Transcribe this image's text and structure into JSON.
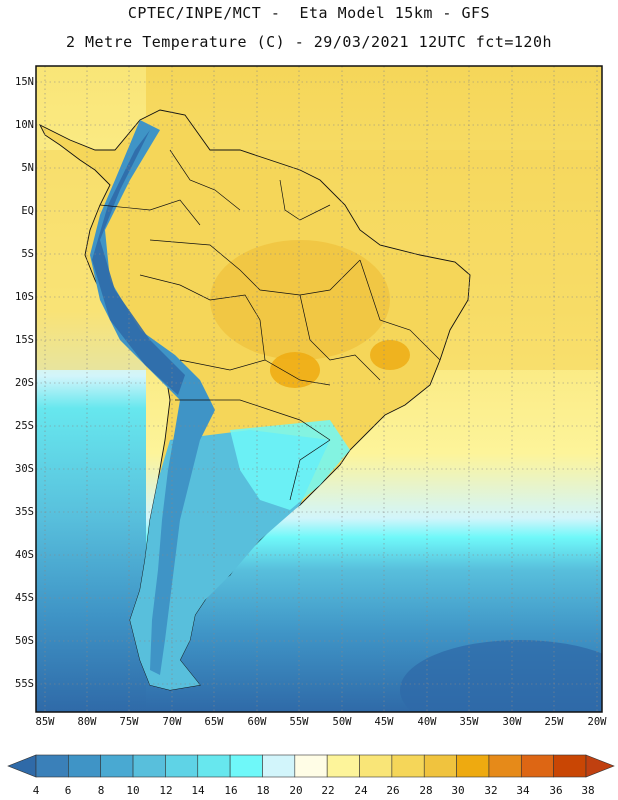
{
  "header": {
    "title_line1": "CPTEC/INPE/MCT -  Eta Model 15km - GFS",
    "title_line2": "2 Metre Temperature (C) - 29/03/2021 12UTC fct=120h"
  },
  "map": {
    "region": "South America",
    "lat_labels": [
      "15N",
      "10N",
      "5N",
      "EQ",
      "5S",
      "10S",
      "15S",
      "20S",
      "25S",
      "30S",
      "35S",
      "40S",
      "45S",
      "50S",
      "55S"
    ],
    "lon_labels": [
      "85W",
      "80W",
      "75W",
      "70W",
      "65W",
      "60W",
      "55W",
      "50W",
      "45W",
      "40W",
      "35W",
      "30W",
      "25W",
      "20W"
    ]
  },
  "legend": {
    "values": [
      "4",
      "6",
      "8",
      "10",
      "12",
      "14",
      "16",
      "18",
      "20",
      "22",
      "24",
      "26",
      "28",
      "30",
      "32",
      "34",
      "36",
      "38"
    ],
    "colors": [
      "#2f6aa8",
      "#3a80b9",
      "#3f94c6",
      "#49a9d2",
      "#58bfdc",
      "#5fd3e6",
      "#67e7ee",
      "#6ff8f9",
      "#d2f5fb",
      "#fffde6",
      "#fdf49a",
      "#f9e577",
      "#f5d659",
      "#f0c33e",
      "#eeaa10",
      "#e68a19",
      "#dd6614",
      "#c94604",
      "#c04010"
    ]
  }
}
